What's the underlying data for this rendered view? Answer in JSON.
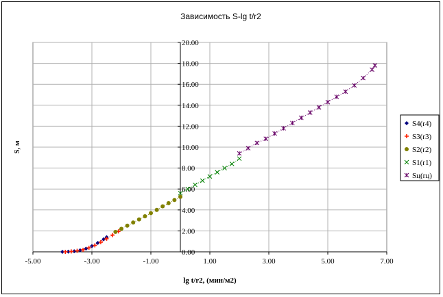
{
  "chart_data": {
    "type": "scatter",
    "title": "Зависимость S-lg t/r2",
    "xlabel": "lg t/r2, (мин/м2)",
    "ylabel": "S, м",
    "xlim": [
      -5,
      7
    ],
    "ylim": [
      0,
      20
    ],
    "x_ticks": [
      "-5.00",
      "-3.00",
      "-1.00",
      "1.00",
      "3.00",
      "5.00",
      "7.00"
    ],
    "y_ticks": [
      "0.00",
      "2.00",
      "4.00",
      "6.00",
      "8.00",
      "10.00",
      "12.00",
      "14.00",
      "16.00",
      "18.00",
      "20.00"
    ],
    "grid": "vertical and horizontal",
    "legend_position": "right",
    "series": [
      {
        "name": "S4(r4)",
        "color": "#000080",
        "marker": "diamond",
        "x": [
          -4.0,
          -3.8,
          -3.6,
          -3.4,
          -3.2,
          -3.0,
          -2.8,
          -2.6,
          -2.5
        ],
        "y": [
          0.0,
          0.02,
          0.06,
          0.15,
          0.3,
          0.55,
          0.85,
          1.2,
          1.4
        ]
      },
      {
        "name": "S3(r3)",
        "color": "#ff2000",
        "marker": "plus",
        "x": [
          -3.9,
          -3.7,
          -3.5,
          -3.3,
          -3.1,
          -2.9,
          -2.7,
          -2.5,
          -2.3,
          -2.1
        ],
        "y": [
          0.0,
          0.04,
          0.1,
          0.2,
          0.38,
          0.62,
          0.92,
          1.25,
          1.6,
          1.95
        ]
      },
      {
        "name": "S2(r2)",
        "color": "#808000",
        "marker": "circle",
        "x": [
          -2.2,
          -2.0,
          -1.8,
          -1.6,
          -1.4,
          -1.2,
          -1.0,
          -0.8,
          -0.6,
          -0.4,
          -0.2,
          0.0
        ],
        "y": [
          1.9,
          2.2,
          2.5,
          2.8,
          3.1,
          3.4,
          3.7,
          4.0,
          4.35,
          4.65,
          4.95,
          5.25
        ]
      },
      {
        "name": "S1(r1)",
        "color": "#008000",
        "marker": "x",
        "x": [
          0.0,
          0.25,
          0.5,
          0.75,
          1.0,
          1.25,
          1.5,
          1.75,
          2.0
        ],
        "y": [
          5.6,
          6.0,
          6.4,
          6.8,
          7.2,
          7.6,
          8.0,
          8.4,
          8.9
        ]
      },
      {
        "name": "Sц(rц)",
        "color": "#660066",
        "marker": "asterisk",
        "x": [
          2.0,
          2.3,
          2.6,
          2.9,
          3.2,
          3.5,
          3.8,
          4.1,
          4.4,
          4.7,
          5.0,
          5.3,
          5.6,
          5.9,
          6.2,
          6.5,
          6.6
        ],
        "y": [
          9.4,
          9.9,
          10.4,
          10.8,
          11.3,
          11.8,
          12.3,
          12.8,
          13.3,
          13.8,
          14.3,
          14.8,
          15.3,
          15.9,
          16.6,
          17.4,
          17.8
        ]
      }
    ]
  }
}
